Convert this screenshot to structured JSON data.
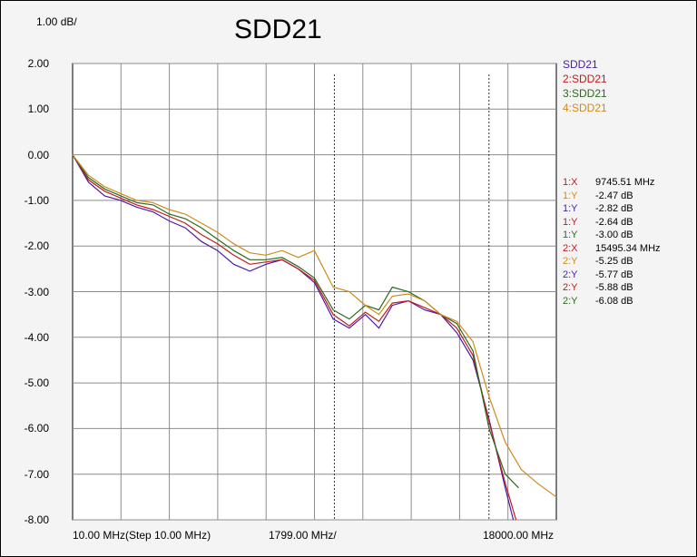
{
  "chart_data": {
    "type": "line",
    "title": "SDD21",
    "scale_label": "1.00 dB/",
    "x_tick_labels": [
      "10.00 MHz(Step 10.00 MHz)",
      "1799.00 MHz/",
      "18000.00 MHz"
    ],
    "y_ticks": [
      2,
      1,
      0,
      -1,
      -2,
      -3,
      -4,
      -5,
      -6,
      -7,
      -8
    ],
    "y_tick_labels": [
      "2.00",
      "1.00",
      "0.00",
      "-1.00",
      "-2.00",
      "-3.00",
      "-4.00",
      "-5.00",
      "-6.00",
      "-7.00",
      "-8.00"
    ],
    "xlim": [
      10,
      18000
    ],
    "ylim": [
      -8,
      2
    ],
    "grid": true,
    "legend_position": "right",
    "markers": [
      9745.51,
      15495.34
    ],
    "series": [
      {
        "name": "SDD21",
        "color": "#4b1aa8",
        "x": [
          10,
          600,
          1200,
          1800,
          2400,
          3000,
          3600,
          4200,
          4800,
          5400,
          6000,
          6600,
          7200,
          7800,
          8400,
          9000,
          9700,
          10300,
          10900,
          11400,
          11900,
          12500,
          13100,
          13700,
          14300,
          14900,
          15500,
          16100,
          16400
        ],
        "y": [
          0,
          -0.6,
          -0.9,
          -1.0,
          -1.15,
          -1.25,
          -1.45,
          -1.6,
          -1.9,
          -2.1,
          -2.4,
          -2.55,
          -2.4,
          -2.3,
          -2.5,
          -2.8,
          -3.6,
          -3.8,
          -3.5,
          -3.8,
          -3.3,
          -3.2,
          -3.4,
          -3.5,
          -3.9,
          -4.5,
          -5.8,
          -7.3,
          -8.0
        ]
      },
      {
        "name": "2:SDD21",
        "color": "#c21a1a",
        "x": [
          10,
          600,
          1200,
          1800,
          2400,
          3000,
          3600,
          4200,
          4800,
          5400,
          6000,
          6600,
          7200,
          7800,
          8400,
          9000,
          9700,
          10300,
          10900,
          11400,
          11900,
          12500,
          13100,
          13700,
          14300,
          14900,
          15500,
          16100,
          16500
        ],
        "y": [
          0,
          -0.55,
          -0.8,
          -0.95,
          -1.1,
          -1.2,
          -1.35,
          -1.5,
          -1.75,
          -1.95,
          -2.2,
          -2.4,
          -2.35,
          -2.3,
          -2.5,
          -2.75,
          -3.5,
          -3.75,
          -3.45,
          -3.65,
          -3.25,
          -3.2,
          -3.35,
          -3.5,
          -3.8,
          -4.4,
          -5.85,
          -7.2,
          -8.0
        ]
      },
      {
        "name": "3:SDD21",
        "color": "#2b6a1c",
        "x": [
          10,
          600,
          1200,
          1800,
          2400,
          3000,
          3600,
          4200,
          4800,
          5400,
          6000,
          6600,
          7200,
          7800,
          8400,
          9000,
          9700,
          10300,
          10900,
          11400,
          11900,
          12500,
          13100,
          13700,
          14300,
          14900,
          15500,
          16100,
          16600
        ],
        "y": [
          0,
          -0.5,
          -0.75,
          -0.9,
          -1.05,
          -1.1,
          -1.3,
          -1.4,
          -1.6,
          -1.85,
          -2.1,
          -2.3,
          -2.3,
          -2.25,
          -2.45,
          -2.7,
          -3.4,
          -3.6,
          -3.3,
          -3.4,
          -2.9,
          -3.0,
          -3.2,
          -3.5,
          -3.7,
          -4.3,
          -6.0,
          -7.0,
          -7.3
        ]
      },
      {
        "name": "4:SDD21",
        "color": "#d08a1c",
        "x": [
          10,
          600,
          1200,
          1800,
          2400,
          3000,
          3600,
          4200,
          4800,
          5400,
          6000,
          6600,
          7200,
          7800,
          8400,
          9000,
          9700,
          10300,
          10900,
          11400,
          11900,
          12500,
          13100,
          13700,
          14300,
          14900,
          15500,
          16100,
          16700,
          17300,
          18000
        ],
        "y": [
          0,
          -0.45,
          -0.7,
          -0.85,
          -1.0,
          -1.05,
          -1.2,
          -1.3,
          -1.5,
          -1.7,
          -1.95,
          -2.15,
          -2.2,
          -2.1,
          -2.25,
          -2.1,
          -2.9,
          -3.0,
          -3.3,
          -3.5,
          -3.1,
          -3.05,
          -3.2,
          -3.5,
          -3.65,
          -4.1,
          -5.3,
          -6.3,
          -6.9,
          -7.2,
          -7.5
        ]
      }
    ]
  },
  "legend": [
    "SDD21",
    "2:SDD21",
    "3:SDD21",
    "4:SDD21"
  ],
  "marker_readout": [
    {
      "key": "1:X",
      "value": "9745.51 MHz",
      "color": "#c21a1a"
    },
    {
      "key": "1:Y",
      "value": "-2.47 dB",
      "color": "#d08a1c"
    },
    {
      "key": "1:Y",
      "value": "-2.82 dB",
      "color": "#4b1aa8"
    },
    {
      "key": "1:Y",
      "value": "-2.64 dB",
      "color": "#c21a1a"
    },
    {
      "key": "1:Y",
      "value": "-3.00 dB",
      "color": "#2b6a1c"
    },
    {
      "key": "2:X",
      "value": "15495.34 MHz",
      "color": "#c21a1a"
    },
    {
      "key": "2:Y",
      "value": "-5.25 dB",
      "color": "#d08a1c"
    },
    {
      "key": "2:Y",
      "value": "-5.77 dB",
      "color": "#4b1aa8"
    },
    {
      "key": "2:Y",
      "value": "-5.88 dB",
      "color": "#c21a1a"
    },
    {
      "key": "2:Y",
      "value": "-6.08 dB",
      "color": "#2b6a1c"
    }
  ]
}
